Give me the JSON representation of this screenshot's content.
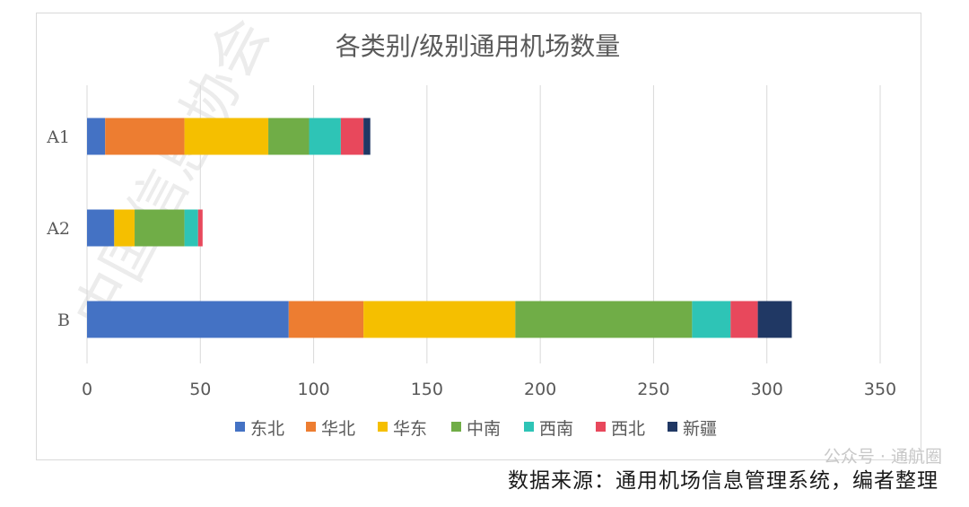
{
  "chart_data": {
    "type": "bar",
    "orientation": "horizontal",
    "stacked": true,
    "title": "各类别/级别通用机场数量",
    "categories": [
      "A1",
      "A2",
      "B"
    ],
    "xlim": [
      0,
      350
    ],
    "xticks": [
      0,
      50,
      100,
      150,
      200,
      250,
      300,
      350
    ],
    "grid": true,
    "legend_position": "bottom",
    "series": [
      {
        "name": "东北",
        "color": "#4472c4",
        "values": [
          8,
          12,
          89
        ]
      },
      {
        "name": "华北",
        "color": "#ed7d31",
        "values": [
          35,
          0,
          33
        ]
      },
      {
        "name": "华东",
        "color": "#f5bf00",
        "values": [
          37,
          9,
          67
        ]
      },
      {
        "name": "中南",
        "color": "#70ad47",
        "values": [
          18,
          22,
          78
        ]
      },
      {
        "name": "西南",
        "color": "#2ec4b6",
        "values": [
          14,
          6,
          17
        ]
      },
      {
        "name": "西北",
        "color": "#e8485c",
        "values": [
          10,
          2,
          12
        ]
      },
      {
        "name": "新疆",
        "color": "#203864",
        "values": [
          3,
          0,
          15
        ]
      }
    ]
  },
  "footer": {
    "source": "数据来源：通用机场信息管理系统，编者整理",
    "watermark": "公众号 · 通航圈",
    "background_watermark": "中国信息协会"
  }
}
